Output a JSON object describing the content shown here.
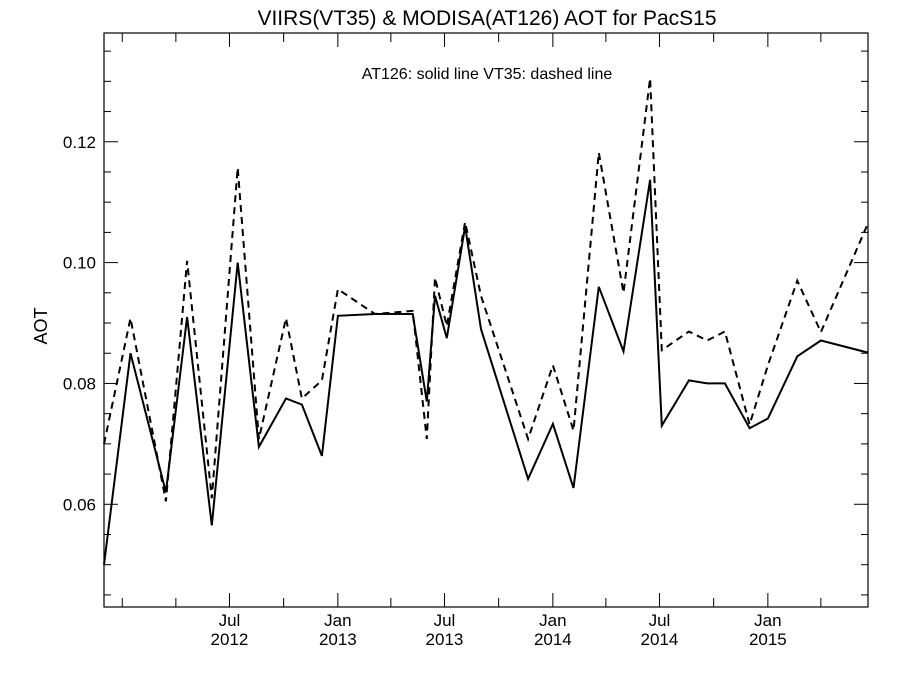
{
  "chart_data": {
    "type": "line",
    "title": "VIIRS(VT35) & MODISA(AT126)  AOT for PacS15",
    "annotation": "AT126: solid line   VT35: dashed line",
    "xlabel": "",
    "ylabel": "AOT",
    "ylim": [
      0.043,
      0.138
    ],
    "xlim": [
      "2011-12-01",
      "2015-06-20"
    ],
    "grid": false,
    "y_ticks": [
      "0.06",
      "0.08",
      "0.10",
      "0.12"
    ],
    "y_tick_values": [
      0.06,
      0.08,
      0.1,
      0.12
    ],
    "x_ticks": [
      {
        "date": "2012-07-01",
        "line1": "Jul",
        "line2": "2012"
      },
      {
        "date": "2013-01-01",
        "line1": "Jan",
        "line2": "2013"
      },
      {
        "date": "2013-07-01",
        "line1": "Jul",
        "line2": "2013"
      },
      {
        "date": "2014-01-01",
        "line1": "Jan",
        "line2": "2014"
      },
      {
        "date": "2014-07-01",
        "line1": "Jul",
        "line2": "2014"
      },
      {
        "date": "2015-01-01",
        "line1": "Jan",
        "line2": "2015"
      }
    ],
    "series": [
      {
        "name": "AT126",
        "style": "solid",
        "color": "#000000",
        "points": [
          [
            "2011-12-01",
            0.05
          ],
          [
            "2012-01-15",
            0.085
          ],
          [
            "2012-03-15",
            0.062
          ],
          [
            "2012-04-20",
            0.091
          ],
          [
            "2012-06-01",
            0.0565
          ],
          [
            "2012-07-15",
            0.1
          ],
          [
            "2012-08-20",
            0.0695
          ],
          [
            "2012-10-05",
            0.0775
          ],
          [
            "2012-11-01",
            0.0765
          ],
          [
            "2012-12-05",
            0.068
          ],
          [
            "2013-01-01",
            0.0912
          ],
          [
            "2013-03-05",
            0.0915
          ],
          [
            "2013-05-08",
            0.0915
          ],
          [
            "2013-06-01",
            0.077
          ],
          [
            "2013-06-15",
            0.0945
          ],
          [
            "2013-07-05",
            0.0875
          ],
          [
            "2013-08-05",
            0.106
          ],
          [
            "2013-09-01",
            0.089
          ],
          [
            "2013-11-20",
            0.0642
          ],
          [
            "2014-01-01",
            0.0733
          ],
          [
            "2014-02-05",
            0.0627
          ],
          [
            "2014-03-20",
            0.096
          ],
          [
            "2014-05-01",
            0.0853
          ],
          [
            "2014-06-15",
            0.1137
          ],
          [
            "2014-07-05",
            0.073
          ],
          [
            "2014-08-20",
            0.0805
          ],
          [
            "2014-09-20",
            0.08
          ],
          [
            "2014-10-20",
            0.08
          ],
          [
            "2014-12-01",
            0.0726
          ],
          [
            "2015-01-01",
            0.0742
          ],
          [
            "2015-02-20",
            0.0845
          ],
          [
            "2015-04-01",
            0.0871
          ],
          [
            "2015-06-20",
            0.0851
          ]
        ]
      },
      {
        "name": "VT35",
        "style": "dashed",
        "color": "#000000",
        "points": [
          [
            "2011-12-01",
            0.07
          ],
          [
            "2012-01-15",
            0.0908
          ],
          [
            "2012-03-15",
            0.0605
          ],
          [
            "2012-04-20",
            0.1003
          ],
          [
            "2012-06-01",
            0.061
          ],
          [
            "2012-07-15",
            0.1157
          ],
          [
            "2012-08-20",
            0.0708
          ],
          [
            "2012-10-05",
            0.0908
          ],
          [
            "2012-11-01",
            0.0775
          ],
          [
            "2012-12-05",
            0.0805
          ],
          [
            "2013-01-01",
            0.0956
          ],
          [
            "2013-03-05",
            0.0915
          ],
          [
            "2013-05-08",
            0.092
          ],
          [
            "2013-06-01",
            0.0708
          ],
          [
            "2013-06-15",
            0.0975
          ],
          [
            "2013-07-05",
            0.0895
          ],
          [
            "2013-08-05",
            0.1067
          ],
          [
            "2013-09-01",
            0.0945
          ],
          [
            "2013-11-20",
            0.0708
          ],
          [
            "2014-01-01",
            0.083
          ],
          [
            "2014-02-05",
            0.0722
          ],
          [
            "2014-03-20",
            0.1182
          ],
          [
            "2014-05-01",
            0.095
          ],
          [
            "2014-06-15",
            0.1305
          ],
          [
            "2014-07-05",
            0.0855
          ],
          [
            "2014-08-20",
            0.0886
          ],
          [
            "2014-09-20",
            0.0871
          ],
          [
            "2014-10-20",
            0.0886
          ],
          [
            "2014-12-01",
            0.0732
          ],
          [
            "2015-01-01",
            0.083
          ],
          [
            "2015-02-20",
            0.097
          ],
          [
            "2015-04-01",
            0.0885
          ],
          [
            "2015-06-20",
            0.1065
          ]
        ]
      }
    ]
  }
}
